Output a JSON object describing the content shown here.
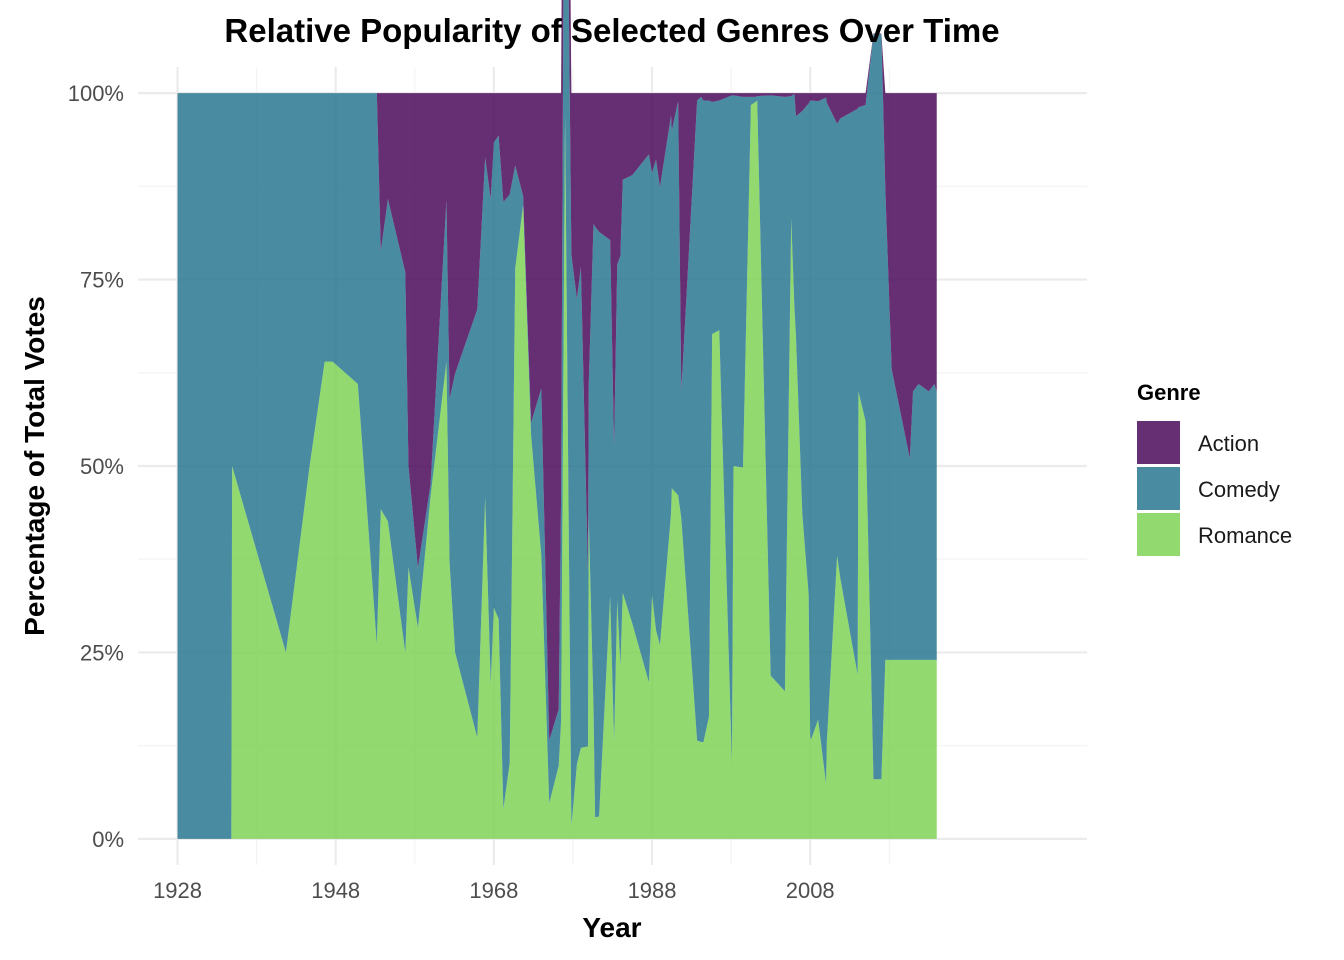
{
  "chart_data": {
    "type": "area",
    "stacked": true,
    "normalized": true,
    "title": "Relative Popularity of Selected Genres Over Time",
    "xlabel": "Year",
    "ylabel": "Percentage of Total Votes",
    "xlim": [
      1923,
      2043
    ],
    "ylim": [
      -0.035,
      1.035
    ],
    "x_ticks": [
      1928,
      1948,
      1968,
      1988,
      2008
    ],
    "x_tick_labels": [
      "1928",
      "1948",
      "1968",
      "1988",
      "2008"
    ],
    "y_ticks": [
      0,
      0.25,
      0.5,
      0.75,
      1.0
    ],
    "y_tick_labels": [
      "0%",
      "25%",
      "50%",
      "75%",
      "100%"
    ],
    "grid": true,
    "legend": {
      "title": "Genre",
      "position": "right",
      "entries": [
        "Action",
        "Comedy",
        "Romance"
      ]
    },
    "colors": {
      "Action": "#440154",
      "Comedy": "#21718b",
      "Romance": "#7ad151"
    },
    "fill_opacity": 0.82,
    "x": [
      1928,
      1934.8,
      1934.9,
      1941.7,
      1944.7,
      1946.6,
      1947.6,
      1950.8,
      1953.2,
      1953.7,
      1954.6,
      1956.8,
      1957.2,
      1958.4,
      1960,
      1962,
      1962.4,
      1963.1,
      1965.9,
      1966.9,
      1967.6,
      1968,
      1968.6,
      1969.2,
      1970,
      1970.7,
      1971.7,
      1972.7,
      1974,
      1975,
      1976.2,
      1976.5,
      1977,
      1977.8,
      1978.5,
      1979,
      1979.9,
      1980,
      1980.6,
      1980.8,
      1981.3,
      1982.7,
      1983.2,
      1983.6,
      1984,
      1984.3,
      1985.5,
      1987.6,
      1988,
      1988.5,
      1989,
      1990.4,
      1990.5,
      1991.3,
      1991.7,
      1993.7,
      1994.2,
      1994.5,
      1995.2,
      1995.6,
      1996.5,
      1998.1,
      1998.3,
      1999.5,
      2000.5,
      2001.1,
      2001.3,
      2003,
      2004.8,
      2005.6,
      2006,
      2006.2,
      2007,
      2007.8,
      2008,
      2008.1,
      2009,
      2010,
      2010.1,
      2011.4,
      2011.8,
      2014,
      2014.1,
      2015,
      2016,
      2016.6,
      2017,
      2017.5,
      2018.3,
      2020.6,
      2021,
      2021.7,
      2023,
      2023.7,
      2024
    ],
    "series": [
      {
        "name": "Action",
        "values": [
          0,
          0,
          0,
          0,
          0,
          0,
          0,
          0,
          0,
          0.212,
          0.142,
          0.24,
          0.5,
          0.637,
          0.524,
          0.144,
          0.41,
          0.376,
          0.29,
          0.086,
          0.142,
          0.066,
          0.057,
          0.146,
          0.136,
          0.097,
          0.138,
          0.442,
          0.396,
          0.868,
          0.826,
          0.54,
          0.39,
          0.216,
          0.276,
          0.233,
          0.643,
          0.39,
          0.175,
          0.179,
          0.186,
          0.197,
          0.475,
          0.23,
          0.218,
          0.116,
          0.11,
          0.082,
          0.107,
          0.089,
          0.126,
          0.03,
          0.05,
          0.011,
          0.4,
          0.01,
          0.005,
          0.01,
          0.01,
          0.012,
          0.01,
          0.003,
          0.003,
          0.005,
          0.005,
          0.005,
          0.004,
          0.003,
          0.005,
          0.004,
          0.001,
          0.031,
          0.024,
          0.014,
          0.01,
          0.01,
          0.011,
          0.006,
          0.013,
          0.041,
          0.034,
          0.021,
          0.019,
          0.016,
          0.001,
          0.001,
          0.001,
          0.13,
          0.37,
          0.49,
          0.4,
          0.39,
          0.4,
          0.39,
          0.4
        ]
      },
      {
        "name": "Comedy",
        "values": [
          1,
          1,
          0.5,
          0.75,
          0.5,
          0.36,
          0.36,
          0.39,
          0.739,
          0.346,
          0.432,
          0.51,
          0.136,
          0.08,
          0.016,
          0.216,
          0.22,
          0.374,
          0.574,
          0.456,
          0.65,
          0.624,
          0.648,
          0.814,
          0.762,
          0.138,
          0.012,
          0.016,
          0.224,
          0.084,
          0.076,
          0.302,
          0.64,
          0.766,
          0.624,
          0.645,
          0.233,
          0.18,
          0.649,
          0.792,
          0.784,
          0.478,
          0.393,
          0.45,
          0.55,
          0.554,
          0.601,
          0.708,
          0.566,
          0.631,
          0.614,
          0.534,
          0.48,
          0.528,
          0.17,
          0.858,
          0.865,
          0.86,
          0.826,
          0.311,
          0.308,
          0.895,
          0.497,
          0.497,
          0.011,
          0.007,
          0.006,
          0.778,
          0.797,
          0.164,
          0.286,
          0.295,
          0.54,
          0.658,
          0.852,
          0.857,
          0.829,
          0.919,
          0.857,
          0.579,
          0.616,
          0.759,
          0.381,
          0.424,
          0.999,
          0.999,
          0.999,
          0.63,
          0.39,
          0.27,
          0.36,
          0.37,
          0.36,
          0.37,
          0.36
        ]
      },
      {
        "name": "Romance",
        "values": [
          0,
          0,
          0.5,
          0.25,
          0.5,
          0.64,
          0.64,
          0.61,
          0.261,
          0.442,
          0.426,
          0.25,
          0.364,
          0.283,
          0.46,
          0.64,
          0.37,
          0.25,
          0.136,
          0.458,
          0.208,
          0.31,
          0.295,
          0.04,
          0.102,
          0.765,
          0.85,
          0.542,
          0.38,
          0.048,
          0.098,
          0.158,
          0.97,
          0.018,
          0.1,
          0.122,
          0.124,
          0.43,
          0.176,
          0.029,
          0.03,
          0.325,
          0.132,
          0.32,
          0.232,
          0.33,
          0.289,
          0.21,
          0.327,
          0.28,
          0.26,
          0.436,
          0.47,
          0.461,
          0.43,
          0.132,
          0.13,
          0.13,
          0.164,
          0.677,
          0.682,
          0.102,
          0.5,
          0.498,
          0.984,
          0.988,
          0.99,
          0.219,
          0.198,
          0.832,
          0.713,
          0.674,
          0.436,
          0.328,
          0.138,
          0.133,
          0.16,
          0.075,
          0.13,
          0.38,
          0.35,
          0.22,
          0.6,
          0.56,
          0.08,
          0.08,
          0.08,
          0.24,
          0.24,
          0.24,
          0.24,
          0.24,
          0.24,
          0.24,
          0.24
        ]
      }
    ]
  }
}
